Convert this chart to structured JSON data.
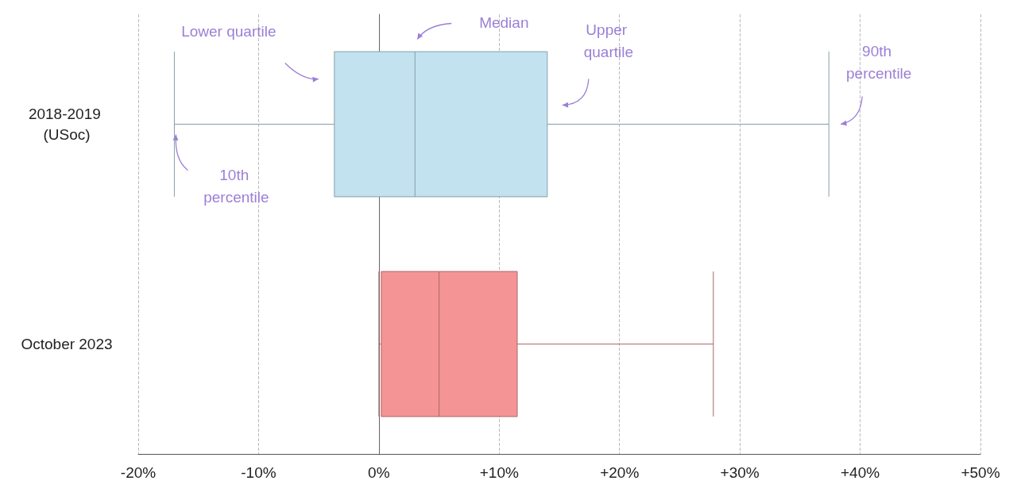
{
  "chart_data": {
    "type": "box",
    "categories": [
      "2018-2019 (USoc)",
      "October 2023"
    ],
    "boxes": [
      {
        "low": -17,
        "q1": -3.7,
        "median": 3,
        "q3": 14,
        "high": 37.4
      },
      {
        "low": 0,
        "q1": 0.2,
        "median": 5,
        "q3": 11.5,
        "high": 27.8
      }
    ],
    "colors": [
      "#c2e2f0",
      "#f59494"
    ],
    "orientation": "horizontal",
    "xlim": [
      -20,
      50
    ],
    "xticks": [
      {
        "value": -20,
        "label": "-20%"
      },
      {
        "value": -10,
        "label": "-10%"
      },
      {
        "value": 0,
        "label": "0%"
      },
      {
        "value": 10,
        "label": "+10%"
      },
      {
        "value": 20,
        "label": "+20%"
      },
      {
        "value": 30,
        "label": "+30%"
      },
      {
        "value": 40,
        "label": "+40%"
      },
      {
        "value": 50,
        "label": "+50%"
      }
    ],
    "grid": "x",
    "annotations": [
      "Lower quartile",
      "Median",
      "Upper quartile",
      "90th percentile",
      "10th percentile"
    ]
  }
}
